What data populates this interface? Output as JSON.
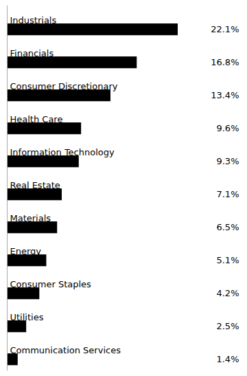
{
  "chart_data": {
    "type": "bar",
    "orientation": "horizontal",
    "categories": [
      "Industrials",
      "Financials",
      "Consumer Discretionary",
      "Health Care",
      "Information Technology",
      "Real Estate",
      "Materials",
      "Energy",
      "Consumer Staples",
      "Utilities",
      "Communication Services"
    ],
    "values": [
      22.1,
      16.8,
      13.4,
      9.6,
      9.3,
      7.1,
      6.5,
      5.1,
      4.2,
      2.5,
      1.4
    ],
    "value_labels": [
      "22.1%",
      "16.8%",
      "13.4%",
      "9.6%",
      "9.3%",
      "7.1%",
      "6.5%",
      "5.1%",
      "4.2%",
      "2.5%",
      "1.4%"
    ],
    "data_labels": true,
    "color": "#000000",
    "xlim": [
      0,
      30
    ],
    "tick_labels": false
  }
}
